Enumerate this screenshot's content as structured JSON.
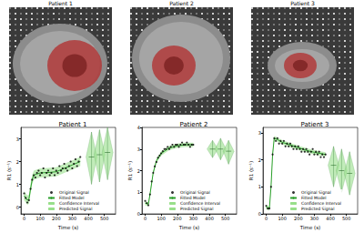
{
  "images": [
    {
      "title": "Patient 1"
    },
    {
      "title": "Patient 2"
    },
    {
      "title": "Patient 3"
    }
  ],
  "chart_data": [
    {
      "type": "scatter",
      "title": "Patient 1",
      "x_label": "Time (s)",
      "y_label": "R1 (s⁻¹)",
      "xlim": [
        -20,
        570
      ],
      "xticks": [
        0,
        100,
        200,
        300,
        400,
        500
      ],
      "ylim": [
        -0.3,
        3.5
      ],
      "yticks": [
        0,
        1,
        2,
        3
      ],
      "legend": "lower center",
      "series": [
        {
          "name": "Original Signal",
          "type": "scatter",
          "color": "#000000",
          "marker": "circle",
          "x": [
            0,
            10,
            20,
            30,
            40,
            50,
            60,
            70,
            80,
            90,
            100,
            110,
            120,
            130,
            140,
            150,
            160,
            170,
            180,
            190,
            200,
            210,
            220,
            230,
            240,
            250,
            260,
            270,
            280,
            290,
            300,
            310,
            320,
            330,
            340,
            350
          ],
          "values": [
            0.6,
            0.4,
            0.2,
            0.3,
            0.8,
            1.2,
            1.4,
            1.3,
            1.5,
            1.6,
            1.4,
            1.5,
            1.7,
            1.3,
            1.5,
            1.6,
            1.4,
            1.5,
            1.7,
            1.4,
            1.6,
            1.5,
            1.8,
            1.6,
            1.7,
            1.9,
            1.7,
            1.6,
            1.8,
            2.0,
            1.7,
            1.9,
            2.1,
            1.8,
            2.0,
            2.2
          ]
        },
        {
          "name": "Fitted Model",
          "type": "line",
          "color": "#2ca02c",
          "x": [
            0,
            10,
            20,
            30,
            40,
            50,
            60,
            80,
            100,
            150,
            200,
            250,
            300,
            350
          ],
          "values": [
            0.5,
            0.4,
            0.3,
            0.35,
            0.8,
            1.2,
            1.4,
            1.45,
            1.5,
            1.52,
            1.55,
            1.7,
            1.85,
            2.0
          ]
        },
        {
          "name": "Confidence Interval",
          "type": "band",
          "color": "#98df8a",
          "x": [
            0,
            10,
            20,
            30,
            40,
            50,
            60,
            80,
            100,
            150,
            200,
            250,
            300,
            350
          ],
          "lower": [
            0.3,
            0.2,
            0.1,
            0.15,
            0.6,
            1.0,
            1.2,
            1.25,
            1.3,
            1.32,
            1.35,
            1.5,
            1.65,
            1.8
          ],
          "upper": [
            0.7,
            0.6,
            0.5,
            0.55,
            1.0,
            1.4,
            1.6,
            1.65,
            1.7,
            1.72,
            1.75,
            1.9,
            2.05,
            2.2
          ]
        },
        {
          "name": "Predicted Signal",
          "type": "violin",
          "color": "#98df8a",
          "x": [
            420,
            470,
            520
          ],
          "median": [
            2.2,
            2.3,
            2.4
          ],
          "min": [
            1.0,
            1.1,
            1.2
          ],
          "max": [
            3.3,
            3.4,
            3.5
          ]
        }
      ]
    },
    {
      "type": "scatter",
      "title": "Patient 2",
      "x_label": "Time (s)",
      "y_label": "R1 (s⁻¹)",
      "xlim": [
        -20,
        570
      ],
      "xticks": [
        0,
        100,
        200,
        300,
        400,
        500
      ],
      "ylim": [
        0,
        4
      ],
      "yticks": [
        0,
        1,
        2,
        3,
        4
      ],
      "legend": "lower center",
      "series": [
        {
          "name": "Original Signal",
          "type": "scatter",
          "color": "#000000",
          "marker": "circle",
          "x": [
            0,
            10,
            20,
            30,
            40,
            50,
            60,
            70,
            80,
            90,
            100,
            110,
            120,
            130,
            140,
            150,
            160,
            170,
            180,
            190,
            200,
            210,
            220,
            230,
            240,
            250,
            260,
            270,
            280,
            290,
            300
          ],
          "values": [
            0.6,
            0.5,
            0.4,
            0.9,
            1.5,
            1.9,
            2.2,
            2.4,
            2.6,
            2.7,
            2.8,
            2.9,
            3.0,
            3.0,
            3.1,
            3.0,
            3.1,
            3.2,
            3.1,
            3.2,
            3.2,
            3.1,
            3.2,
            3.3,
            3.2,
            3.2,
            3.3,
            3.2,
            3.1,
            3.2,
            3.2
          ]
        },
        {
          "name": "Fitted Model",
          "type": "line",
          "color": "#2ca02c",
          "x": [
            0,
            20,
            30,
            50,
            70,
            100,
            150,
            200,
            250,
            300
          ],
          "values": [
            0.5,
            0.45,
            0.9,
            1.9,
            2.45,
            2.8,
            3.05,
            3.15,
            3.2,
            3.2
          ]
        },
        {
          "name": "Confidence Interval",
          "type": "band",
          "color": "#98df8a",
          "x": [
            0,
            20,
            30,
            50,
            70,
            100,
            150,
            200,
            250,
            300
          ],
          "lower": [
            0.4,
            0.35,
            0.8,
            1.8,
            2.35,
            2.7,
            2.95,
            3.05,
            3.1,
            3.1
          ],
          "upper": [
            0.6,
            0.55,
            1.0,
            2.0,
            2.55,
            2.9,
            3.15,
            3.25,
            3.3,
            3.3
          ]
        },
        {
          "name": "Predicted Signal",
          "type": "violin",
          "color": "#98df8a",
          "x": [
            420,
            470,
            520
          ],
          "median": [
            3.0,
            3.0,
            2.9
          ],
          "min": [
            2.6,
            2.5,
            2.3
          ],
          "max": [
            3.4,
            3.5,
            3.4
          ]
        }
      ]
    },
    {
      "type": "scatter",
      "title": "Patient 3",
      "x_label": "Time (s)",
      "y_label": "R1 (s⁻¹)",
      "xlim": [
        -20,
        570
      ],
      "xticks": [
        0,
        100,
        200,
        300,
        400,
        500
      ],
      "ylim": [
        0,
        3.2
      ],
      "yticks": [
        0,
        1,
        2,
        3
      ],
      "legend": "lower center",
      "series": [
        {
          "name": "Original Signal",
          "type": "scatter",
          "color": "#000000",
          "marker": "circle",
          "x": [
            0,
            10,
            20,
            30,
            40,
            50,
            60,
            70,
            80,
            90,
            100,
            110,
            120,
            130,
            140,
            150,
            160,
            170,
            180,
            190,
            200,
            210,
            220,
            230,
            240,
            250,
            260,
            270,
            280,
            290,
            300,
            310,
            320,
            330,
            340,
            350,
            360,
            370
          ],
          "values": [
            0.3,
            0.2,
            0.2,
            1.0,
            2.2,
            2.8,
            2.7,
            2.8,
            2.6,
            2.7,
            2.6,
            2.7,
            2.5,
            2.6,
            2.5,
            2.6,
            2.5,
            2.4,
            2.5,
            2.4,
            2.5,
            2.4,
            2.3,
            2.4,
            2.3,
            2.4,
            2.3,
            2.2,
            2.3,
            2.4,
            2.2,
            2.3,
            2.2,
            2.3,
            2.1,
            2.2,
            2.1,
            2.2
          ]
        },
        {
          "name": "Fitted Model",
          "type": "line",
          "color": "#2ca02c",
          "x": [
            0,
            20,
            30,
            40,
            50,
            70,
            100,
            150,
            200,
            250,
            300,
            370
          ],
          "values": [
            0.25,
            0.2,
            1.0,
            2.2,
            2.8,
            2.75,
            2.65,
            2.55,
            2.45,
            2.35,
            2.28,
            2.2
          ]
        },
        {
          "name": "Confidence Interval",
          "type": "band",
          "color": "#98df8a",
          "x": [
            0,
            20,
            30,
            40,
            50,
            70,
            100,
            150,
            200,
            250,
            300,
            370
          ],
          "lower": [
            0.17,
            0.12,
            0.92,
            2.12,
            2.72,
            2.67,
            2.57,
            2.47,
            2.37,
            2.27,
            2.2,
            2.12
          ],
          "upper": [
            0.33,
            0.28,
            1.08,
            2.28,
            2.88,
            2.83,
            2.73,
            2.63,
            2.53,
            2.43,
            2.36,
            2.28
          ]
        },
        {
          "name": "Predicted Signal",
          "type": "violin",
          "color": "#98df8a",
          "x": [
            420,
            470,
            520
          ],
          "median": [
            1.8,
            1.6,
            1.5
          ],
          "min": [
            1.0,
            0.8,
            0.7
          ],
          "max": [
            2.5,
            2.4,
            2.3
          ]
        }
      ]
    }
  ]
}
